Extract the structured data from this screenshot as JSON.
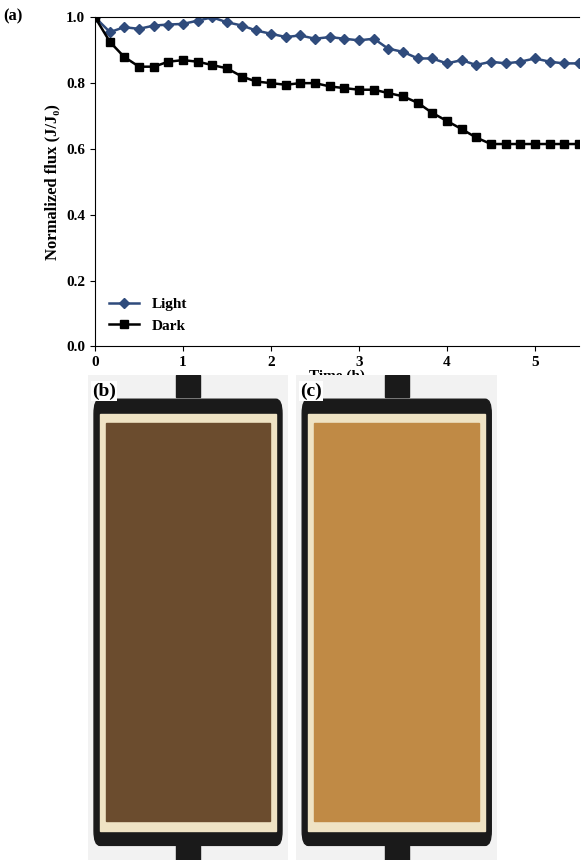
{
  "chart_data": {
    "type": "line",
    "title": "(a)",
    "x_label": "Time (h)",
    "y_label": "Normalized flux (J/J₀)",
    "x": [
      0,
      0.17,
      0.33,
      0.5,
      0.67,
      0.83,
      1.0,
      1.17,
      1.33,
      1.5,
      1.67,
      1.83,
      2.0,
      2.17,
      2.33,
      2.5,
      2.67,
      2.83,
      3.0,
      3.17,
      3.33,
      3.5,
      3.67,
      3.83,
      4.0,
      4.17,
      4.33,
      4.5,
      4.67,
      4.83,
      5.0,
      5.17,
      5.33,
      5.5
    ],
    "series": [
      {
        "name": "Light",
        "color": "#2f4b7c",
        "marker": "diamond",
        "values": [
          1.0,
          0.955,
          0.97,
          0.965,
          0.975,
          0.978,
          0.98,
          0.99,
          1.0,
          0.985,
          0.975,
          0.96,
          0.95,
          0.94,
          0.945,
          0.935,
          0.94,
          0.935,
          0.93,
          0.935,
          0.905,
          0.895,
          0.875,
          0.875,
          0.86,
          0.87,
          0.855,
          0.865,
          0.86,
          0.865,
          0.875,
          0.865,
          0.86,
          0.86
        ]
      },
      {
        "name": "Dark",
        "color": "#000000",
        "marker": "square",
        "values": [
          1.0,
          0.925,
          0.88,
          0.85,
          0.85,
          0.865,
          0.87,
          0.865,
          0.855,
          0.845,
          0.82,
          0.805,
          0.8,
          0.795,
          0.8,
          0.8,
          0.79,
          0.785,
          0.78,
          0.78,
          0.77,
          0.76,
          0.74,
          0.71,
          0.685,
          0.66,
          0.635,
          0.615,
          0.615,
          0.615,
          0.615,
          0.615,
          0.615,
          0.615
        ]
      }
    ],
    "xlim": [
      0,
      5.5
    ],
    "xticks": [
      0,
      1,
      2,
      3,
      4,
      5
    ],
    "ylim": [
      0,
      1.0
    ],
    "yticks": [
      {
        "value": 0,
        "label": "0.0"
      },
      {
        "value": 0.2,
        "label": "0.2"
      },
      {
        "value": 0.4,
        "label": "0.4"
      },
      {
        "value": 0.6,
        "label": "0.6"
      },
      {
        "value": 0.8,
        "label": "0.8"
      },
      {
        "value": 1.0,
        "label": "1.0"
      }
    ],
    "legend": "lower left",
    "grid": false
  },
  "photos": [
    {
      "label": "(b)"
    },
    {
      "label": "(c)"
    }
  ]
}
